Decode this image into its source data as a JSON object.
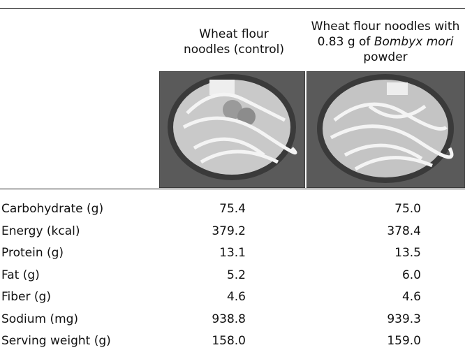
{
  "header": {
    "columns": [
      {
        "label": "Wheat flour noodles (control)"
      },
      {
        "text_before": "Wheat flour noodles with 0.83 g of",
        "italic": "Bombyx mori",
        "text_after": "powder"
      }
    ]
  },
  "table": {
    "rows": [
      [
        "Carbohydrate (g)",
        "75.4",
        "75.0"
      ],
      [
        "Energy (kcal)",
        "379.2",
        "378.4"
      ],
      [
        "Protein (g)",
        "13.1",
        "13.5"
      ],
      [
        "Fat (g)",
        "5.2",
        "6.0"
      ],
      [
        "Fiber (g)",
        "4.6",
        "4.6"
      ],
      [
        "Sodium (mg)",
        "938.8",
        "939.3"
      ],
      [
        "Serving weight (g)",
        "158.0",
        "159.0"
      ]
    ]
  }
}
